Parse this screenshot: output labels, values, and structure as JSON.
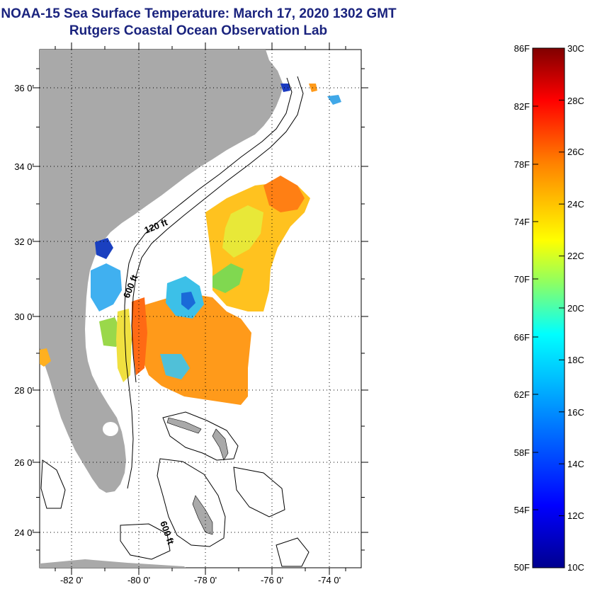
{
  "title": "NOAA-15 Sea Surface Temperature:  March 17, 2020 1302 GMT",
  "subtitle": "Rutgers Coastal Ocean Observation Lab",
  "latitude_ticks": [
    "36 0'",
    "34 0'",
    "32 0'",
    "30 0'",
    "28 0'",
    "26 0'",
    "24 0'"
  ],
  "longitude_ticks": [
    "-82 0'",
    "-80 0'",
    "-78 0'",
    "-76 0'",
    "-74 0'"
  ],
  "bathymetry_labels": [
    "120 ft",
    "600 ft",
    "600 ft"
  ],
  "colorbar": {
    "fahrenheit": [
      "86F",
      "82F",
      "78F",
      "74F",
      "70F",
      "66F",
      "62F",
      "58F",
      "54F",
      "50F"
    ],
    "celsius": [
      "30C",
      "28C",
      "26C",
      "24C",
      "22C",
      "20C",
      "18C",
      "16C",
      "14C",
      "12C",
      "10C"
    ],
    "colors": [
      "#00008f",
      "#0000ff",
      "#0080ff",
      "#00ffff",
      "#80ff80",
      "#ffff00",
      "#ff8000",
      "#ff0000",
      "#800000"
    ]
  },
  "colors": {
    "land": "#a9a9a9",
    "title": "#1a237e"
  }
}
